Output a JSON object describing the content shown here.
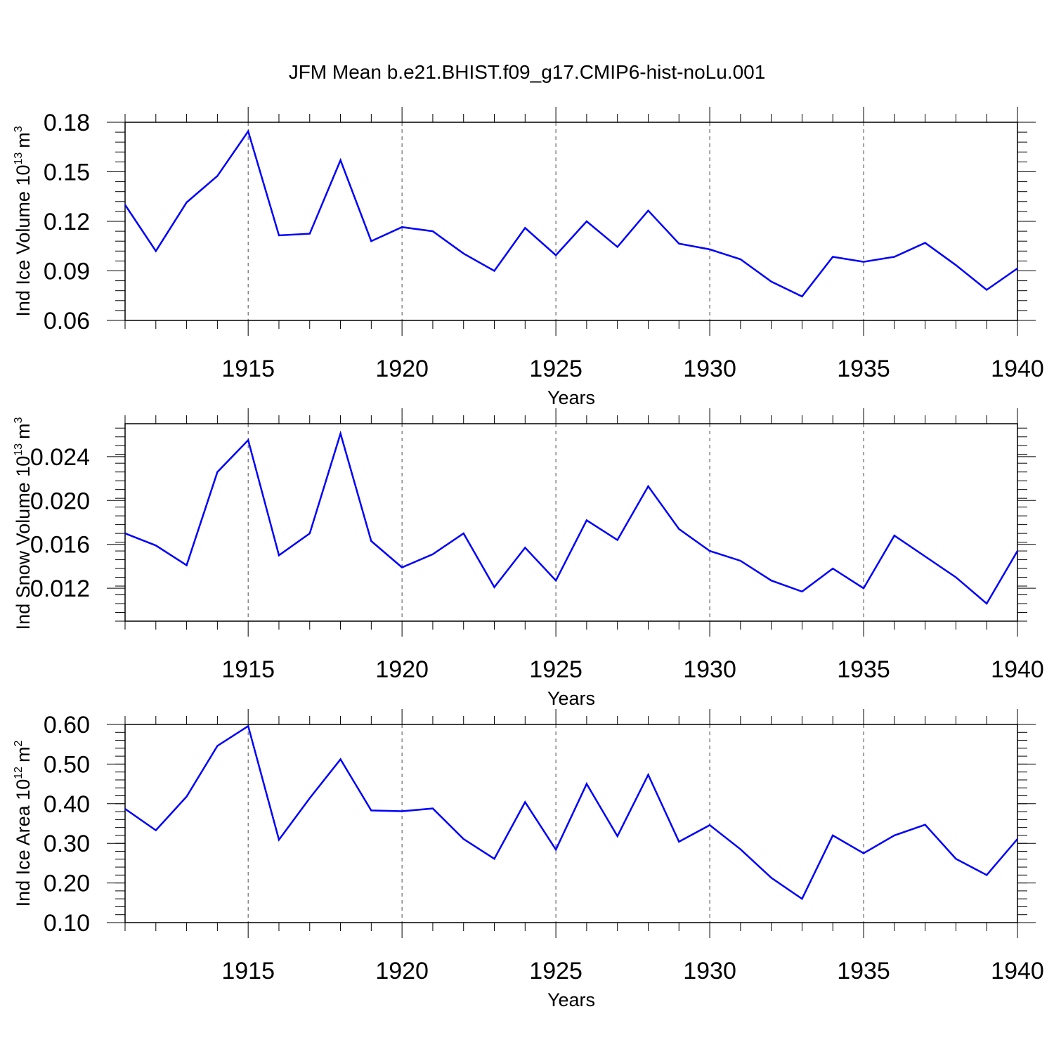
{
  "title": "JFM Mean b.e21.BHIST.f09_g17.CMIP6-hist-noLu.001",
  "colors": {
    "line": "#0000ff",
    "axis": "#000000",
    "grid": "#000000",
    "background": "#ffffff"
  },
  "chart_data": [
    {
      "type": "line",
      "ylabel": "Ind Ice Volume 10",
      "ylabel_exp": "13",
      "ylabel_unit": "m",
      "ylabel_unit_exp": "3",
      "xlabel": "Years",
      "xlim": [
        1911,
        1940
      ],
      "ylim": [
        0.06,
        0.18
      ],
      "yticks": [
        0.06,
        0.09,
        0.12,
        0.15,
        0.18
      ],
      "ytick_labels": [
        "0.06",
        "0.09",
        "0.12",
        "0.15",
        "0.18"
      ],
      "xticks": [
        1915,
        1920,
        1925,
        1930,
        1935,
        1940
      ],
      "xtick_labels": [
        "1915",
        "1920",
        "1925",
        "1930",
        "1935",
        "1940"
      ],
      "grid": "vertical dashed at major x ticks",
      "x": [
        1911,
        1912,
        1913,
        1914,
        1915,
        1916,
        1917,
        1918,
        1919,
        1920,
        1921,
        1922,
        1923,
        1924,
        1925,
        1926,
        1927,
        1928,
        1929,
        1930,
        1931,
        1932,
        1933,
        1934,
        1935,
        1936,
        1937,
        1938,
        1939,
        1940
      ],
      "values": [
        0.13,
        0.102,
        0.1315,
        0.1475,
        0.1745,
        0.1115,
        0.1125,
        0.157,
        0.108,
        0.1165,
        0.114,
        0.1005,
        0.09,
        0.116,
        0.0995,
        0.12,
        0.1045,
        0.1265,
        0.1065,
        0.103,
        0.097,
        0.0835,
        0.0745,
        0.0985,
        0.0955,
        0.0985,
        0.107,
        0.0935,
        0.0785,
        0.0915
      ]
    },
    {
      "type": "line",
      "ylabel": "Ind Snow Volume 10",
      "ylabel_exp": "13",
      "ylabel_unit": "m",
      "ylabel_unit_exp": "3",
      "xlabel": "Years",
      "xlim": [
        1911,
        1940
      ],
      "ylim": [
        0.009,
        0.027
      ],
      "yticks": [
        0.012,
        0.016,
        0.02,
        0.024
      ],
      "ytick_labels": [
        "0.012",
        "0.016",
        "0.020",
        "0.024"
      ],
      "xticks": [
        1915,
        1920,
        1925,
        1930,
        1935,
        1940
      ],
      "xtick_labels": [
        "1915",
        "1920",
        "1925",
        "1930",
        "1935",
        "1940"
      ],
      "grid": "vertical dashed at major x ticks",
      "x": [
        1911,
        1912,
        1913,
        1914,
        1915,
        1916,
        1917,
        1918,
        1919,
        1920,
        1921,
        1922,
        1923,
        1924,
        1925,
        1926,
        1927,
        1928,
        1929,
        1930,
        1931,
        1932,
        1933,
        1934,
        1935,
        1936,
        1937,
        1938,
        1939,
        1940
      ],
      "values": [
        0.017,
        0.0159,
        0.0141,
        0.0226,
        0.0255,
        0.015,
        0.017,
        0.0261,
        0.0163,
        0.0139,
        0.0151,
        0.017,
        0.0121,
        0.0157,
        0.0127,
        0.0182,
        0.0164,
        0.0213,
        0.0174,
        0.0154,
        0.0145,
        0.0127,
        0.0117,
        0.0138,
        0.012,
        0.0168,
        0.0149,
        0.013,
        0.0106,
        0.0154
      ]
    },
    {
      "type": "line",
      "ylabel": "Ind Ice Area 10",
      "ylabel_exp": "12",
      "ylabel_unit": "m",
      "ylabel_unit_exp": "2",
      "xlabel": "Years",
      "xlim": [
        1911,
        1940
      ],
      "ylim": [
        0.1,
        0.6
      ],
      "yticks": [
        0.1,
        0.2,
        0.3,
        0.4,
        0.5,
        0.6
      ],
      "ytick_labels": [
        "0.10",
        "0.20",
        "0.30",
        "0.40",
        "0.50",
        "0.60"
      ],
      "xticks": [
        1915,
        1920,
        1925,
        1930,
        1935,
        1940
      ],
      "xtick_labels": [
        "1915",
        "1920",
        "1925",
        "1930",
        "1935",
        "1940"
      ],
      "grid": "vertical dashed at major x ticks",
      "x": [
        1911,
        1912,
        1913,
        1914,
        1915,
        1916,
        1917,
        1918,
        1919,
        1920,
        1921,
        1922,
        1923,
        1924,
        1925,
        1926,
        1927,
        1928,
        1929,
        1930,
        1931,
        1932,
        1933,
        1934,
        1935,
        1936,
        1937,
        1938,
        1939,
        1940
      ],
      "values": [
        0.387,
        0.333,
        0.418,
        0.546,
        0.596,
        0.309,
        0.414,
        0.512,
        0.383,
        0.381,
        0.388,
        0.311,
        0.261,
        0.404,
        0.284,
        0.45,
        0.318,
        0.473,
        0.304,
        0.346,
        0.285,
        0.213,
        0.16,
        0.32,
        0.275,
        0.32,
        0.347,
        0.261,
        0.22,
        0.311
      ]
    }
  ]
}
